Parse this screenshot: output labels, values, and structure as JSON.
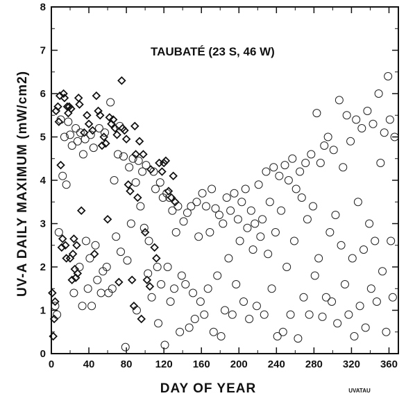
{
  "chart_data": {
    "type": "scatter",
    "title": "TAUBATÉ (23 S, 46 W)",
    "xlabel": "DAY OF YEAR",
    "ylabel": "UV-A DAILY MAXIMUM  (mW/cm2)",
    "corner_code": "UVATAU",
    "xlim": [
      0,
      370
    ],
    "ylim": [
      0,
      8
    ],
    "x_ticks": [
      0,
      40,
      80,
      120,
      160,
      200,
      240,
      280,
      320,
      360
    ],
    "y_ticks": [
      0,
      1,
      2,
      3,
      4,
      5,
      6,
      7,
      8
    ],
    "grid": false,
    "series": [
      {
        "marker": "diamond",
        "points": [
          [
            1,
            1.4
          ],
          [
            2,
            0.4
          ],
          [
            3,
            0.8
          ],
          [
            4,
            1.2
          ],
          [
            5,
            5.6
          ],
          [
            7,
            5.7
          ],
          [
            8,
            5.35
          ],
          [
            9,
            5.95
          ],
          [
            10,
            4.35
          ],
          [
            11,
            2.45
          ],
          [
            12,
            2.65
          ],
          [
            13,
            6.0
          ],
          [
            14,
            5.9
          ],
          [
            15,
            2.5
          ],
          [
            16,
            2.2
          ],
          [
            17,
            5.7
          ],
          [
            18,
            5.55
          ],
          [
            19,
            5.7
          ],
          [
            20,
            2.2
          ],
          [
            21,
            5.65
          ],
          [
            22,
            1.7
          ],
          [
            23,
            2.3
          ],
          [
            24,
            2.65
          ],
          [
            25,
            1.95
          ],
          [
            26,
            1.75
          ],
          [
            27,
            2.5
          ],
          [
            28,
            1.85
          ],
          [
            29,
            5.9
          ],
          [
            30,
            5.75
          ],
          [
            32,
            3.3
          ],
          [
            35,
            5.1
          ],
          [
            38,
            5.5
          ],
          [
            40,
            5.3
          ],
          [
            44,
            5.15
          ],
          [
            46,
            2.3
          ],
          [
            48,
            5.95
          ],
          [
            50,
            5.6
          ],
          [
            52,
            5.5
          ],
          [
            54,
            4.8
          ],
          [
            56,
            5.0
          ],
          [
            58,
            4.85
          ],
          [
            60,
            3.1
          ],
          [
            62,
            5.45
          ],
          [
            64,
            5.3
          ],
          [
            66,
            5.4
          ],
          [
            68,
            5.2
          ],
          [
            70,
            5.05
          ],
          [
            72,
            1.65
          ],
          [
            75,
            6.3
          ],
          [
            76,
            5.2
          ],
          [
            78,
            5.15
          ],
          [
            80,
            4.95
          ],
          [
            82,
            3.9
          ],
          [
            84,
            3.75
          ],
          [
            86,
            1.7
          ],
          [
            88,
            1.1
          ],
          [
            89,
            5.25
          ],
          [
            90,
            4.6
          ],
          [
            92,
            3.6
          ],
          [
            94,
            4.9
          ],
          [
            96,
            0.8
          ],
          [
            98,
            4.6
          ],
          [
            100,
            2.8
          ],
          [
            102,
            1.7
          ],
          [
            105,
            1.55
          ],
          [
            106,
            4.25
          ],
          [
            110,
            2.45
          ],
          [
            112,
            2.2
          ],
          [
            115,
            4.4
          ],
          [
            118,
            4.2
          ],
          [
            120,
            4.4
          ],
          [
            122,
            4.45
          ],
          [
            125,
            3.75
          ],
          [
            128,
            3.6
          ],
          [
            130,
            4.1
          ],
          [
            132,
            3.5
          ]
        ]
      },
      {
        "marker": "circle",
        "points": [
          [
            4,
            1.1
          ],
          [
            6,
            0.9
          ],
          [
            8,
            2.8
          ],
          [
            10,
            5.4
          ],
          [
            12,
            4.1
          ],
          [
            14,
            5.0
          ],
          [
            16,
            3.9
          ],
          [
            18,
            5.35
          ],
          [
            20,
            5.05
          ],
          [
            22,
            4.8
          ],
          [
            24,
            1.4
          ],
          [
            26,
            5.2
          ],
          [
            28,
            4.9
          ],
          [
            30,
            2.0
          ],
          [
            31,
            5.1
          ],
          [
            33,
            1.1
          ],
          [
            34,
            4.6
          ],
          [
            36,
            4.95
          ],
          [
            37,
            2.6
          ],
          [
            39,
            1.5
          ],
          [
            41,
            2.2
          ],
          [
            42,
            5.05
          ],
          [
            43,
            1.1
          ],
          [
            45,
            4.75
          ],
          [
            47,
            2.5
          ],
          [
            49,
            1.7
          ],
          [
            51,
            5.2
          ],
          [
            53,
            1.4
          ],
          [
            55,
            1.9
          ],
          [
            57,
            5.1
          ],
          [
            59,
            2.0
          ],
          [
            61,
            1.4
          ],
          [
            63,
            5.8
          ],
          [
            65,
            1.5
          ],
          [
            67,
            4.0
          ],
          [
            69,
            2.7
          ],
          [
            71,
            4.6
          ],
          [
            73,
            5.25
          ],
          [
            74,
            2.35
          ],
          [
            77,
            4.55
          ],
          [
            79,
            0.15
          ],
          [
            81,
            2.15
          ],
          [
            83,
            4.3
          ],
          [
            85,
            3.0
          ],
          [
            87,
            4.5
          ],
          [
            90,
            3.95
          ],
          [
            91,
            1.0
          ],
          [
            93,
            4.45
          ],
          [
            95,
            3.4
          ],
          [
            97,
            4.2
          ],
          [
            99,
            2.9
          ],
          [
            101,
            4.35
          ],
          [
            103,
            1.85
          ],
          [
            104,
            2.6
          ],
          [
            107,
            1.3
          ],
          [
            109,
            4.2
          ],
          [
            111,
            3.8
          ],
          [
            113,
            2.0
          ],
          [
            114,
            0.7
          ],
          [
            116,
            3.95
          ],
          [
            117,
            1.6
          ],
          [
            119,
            3.6
          ],
          [
            121,
            0.2
          ],
          [
            123,
            3.7
          ],
          [
            124,
            2.0
          ],
          [
            126,
            3.6
          ],
          [
            127,
            1.2
          ],
          [
            129,
            3.3
          ],
          [
            131,
            1.5
          ],
          [
            133,
            2.8
          ],
          [
            135,
            3.4
          ],
          [
            137,
            0.5
          ],
          [
            139,
            1.8
          ],
          [
            141,
            3.05
          ],
          [
            143,
            1.6
          ],
          [
            145,
            3.25
          ],
          [
            147,
            0.6
          ],
          [
            149,
            3.4
          ],
          [
            151,
            1.4
          ],
          [
            153,
            0.8
          ],
          [
            155,
            3.5
          ],
          [
            157,
            2.7
          ],
          [
            159,
            1.2
          ],
          [
            161,
            3.7
          ],
          [
            163,
            0.9
          ],
          [
            165,
            3.4
          ],
          [
            167,
            1.5
          ],
          [
            169,
            2.8
          ],
          [
            171,
            3.8
          ],
          [
            173,
            0.5
          ],
          [
            175,
            3.35
          ],
          [
            177,
            1.8
          ],
          [
            179,
            3.2
          ],
          [
            181,
            0.4
          ],
          [
            183,
            3.0
          ],
          [
            185,
            1.0
          ],
          [
            187,
            3.6
          ],
          [
            189,
            2.2
          ],
          [
            191,
            3.3
          ],
          [
            193,
            0.9
          ],
          [
            195,
            3.7
          ],
          [
            197,
            1.6
          ],
          [
            199,
            3.1
          ],
          [
            201,
            2.6
          ],
          [
            203,
            3.5
          ],
          [
            205,
            1.2
          ],
          [
            207,
            3.8
          ],
          [
            209,
            2.9
          ],
          [
            211,
            0.8
          ],
          [
            213,
            3.3
          ],
          [
            215,
            2.4
          ],
          [
            217,
            3.0
          ],
          [
            219,
            1.1
          ],
          [
            221,
            3.9
          ],
          [
            223,
            2.7
          ],
          [
            225,
            3.1
          ],
          [
            227,
            0.9
          ],
          [
            229,
            4.2
          ],
          [
            231,
            2.3
          ],
          [
            233,
            3.5
          ],
          [
            235,
            1.5
          ],
          [
            237,
            4.3
          ],
          [
            239,
            2.8
          ],
          [
            241,
            0.4
          ],
          [
            243,
            4.1
          ],
          [
            245,
            3.3
          ],
          [
            247,
            0.5
          ],
          [
            249,
            4.35
          ],
          [
            251,
            2.0
          ],
          [
            253,
            4.0
          ],
          [
            255,
            0.9
          ],
          [
            257,
            4.5
          ],
          [
            259,
            2.6
          ],
          [
            261,
            3.8
          ],
          [
            263,
            0.35
          ],
          [
            265,
            4.2
          ],
          [
            267,
            3.6
          ],
          [
            269,
            1.3
          ],
          [
            271,
            4.4
          ],
          [
            273,
            3.1
          ],
          [
            275,
            0.9
          ],
          [
            277,
            4.6
          ],
          [
            279,
            3.4
          ],
          [
            281,
            1.8
          ],
          [
            283,
            5.55
          ],
          [
            285,
            2.2
          ],
          [
            287,
            4.4
          ],
          [
            289,
            0.85
          ],
          [
            291,
            4.8
          ],
          [
            293,
            1.3
          ],
          [
            295,
            5.0
          ],
          [
            297,
            2.8
          ],
          [
            299,
            1.2
          ],
          [
            301,
            4.7
          ],
          [
            303,
            3.2
          ],
          [
            305,
            0.7
          ],
          [
            307,
            5.85
          ],
          [
            309,
            2.5
          ],
          [
            311,
            4.3
          ],
          [
            313,
            1.6
          ],
          [
            315,
            5.5
          ],
          [
            317,
            0.9
          ],
          [
            319,
            4.9
          ],
          [
            321,
            2.2
          ],
          [
            323,
            0.4
          ],
          [
            325,
            5.4
          ],
          [
            327,
            3.5
          ],
          [
            329,
            1.1
          ],
          [
            331,
            5.2
          ],
          [
            333,
            2.4
          ],
          [
            335,
            0.6
          ],
          [
            337,
            5.6
          ],
          [
            339,
            3.0
          ],
          [
            341,
            1.5
          ],
          [
            343,
            5.3
          ],
          [
            345,
            2.6
          ],
          [
            347,
            1.2
          ],
          [
            349,
            6.0
          ],
          [
            351,
            4.4
          ],
          [
            353,
            1.9
          ],
          [
            355,
            5.1
          ],
          [
            357,
            0.5
          ],
          [
            359,
            6.4
          ],
          [
            361,
            5.4
          ],
          [
            362,
            2.6
          ],
          [
            364,
            1.3
          ],
          [
            366,
            5.0
          ]
        ]
      }
    ]
  }
}
